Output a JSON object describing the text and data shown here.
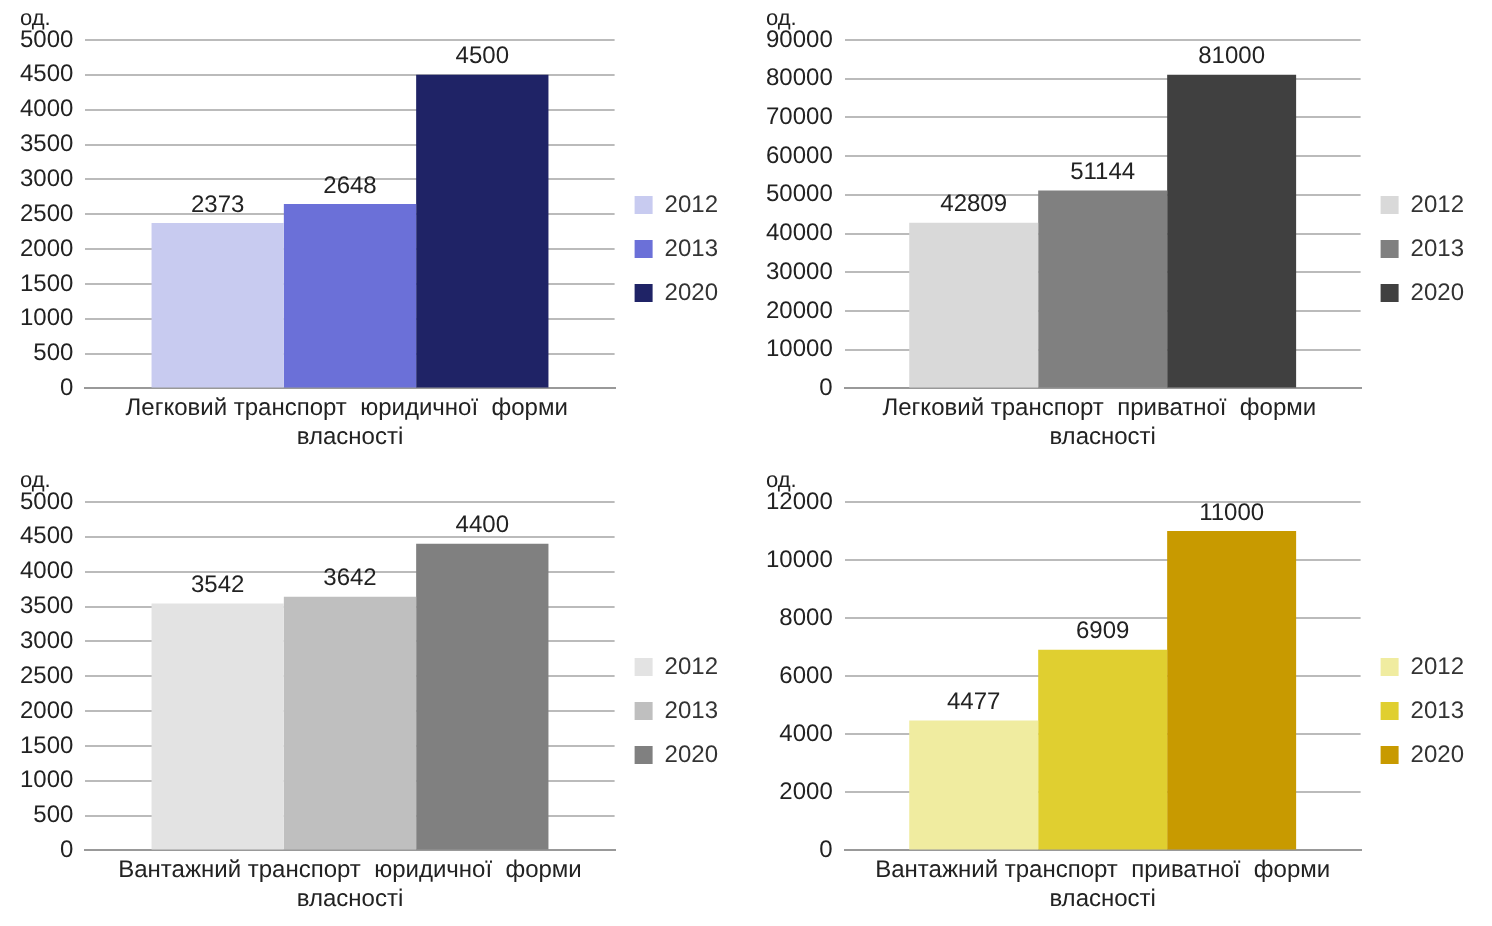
{
  "chart_data": [
    {
      "type": "bar",
      "ylabel": "од.",
      "categories": [
        "Легковий транспорт  юридичної  форми  власності"
      ],
      "series": [
        {
          "name": "2012",
          "color": "#c8cbf0",
          "values": [
            2373
          ]
        },
        {
          "name": "2013",
          "color": "#6b70d8",
          "values": [
            2648
          ]
        },
        {
          "name": "2020",
          "color": "#1f2366",
          "values": [
            4500
          ]
        }
      ],
      "ylim": [
        0,
        5000
      ],
      "yticks": [
        0,
        500,
        1000,
        1500,
        2000,
        2500,
        3000,
        3500,
        4000,
        4500,
        5000
      ],
      "grid": "y",
      "legend": "right",
      "data_labels": true
    },
    {
      "type": "bar",
      "ylabel": "од.",
      "categories": [
        "Легковий транспорт  приватної  форми  власності"
      ],
      "series": [
        {
          "name": "2012",
          "color": "#d9d9d9",
          "values": [
            42809
          ]
        },
        {
          "name": "2013",
          "color": "#808080",
          "values": [
            51144
          ]
        },
        {
          "name": "2020",
          "color": "#404040",
          "values": [
            81000
          ]
        }
      ],
      "ylim": [
        0,
        90000
      ],
      "yticks": [
        0,
        10000,
        20000,
        30000,
        40000,
        50000,
        60000,
        70000,
        80000,
        90000
      ],
      "grid": "y",
      "legend": "right",
      "data_labels": true
    },
    {
      "type": "bar",
      "ylabel": "од.",
      "categories": [
        "Вантажний транспорт  юридичної  форми власності"
      ],
      "series": [
        {
          "name": "2012",
          "color": "#e3e3e3",
          "values": [
            3542
          ]
        },
        {
          "name": "2013",
          "color": "#bfbfbf",
          "values": [
            3642
          ]
        },
        {
          "name": "2020",
          "color": "#808080",
          "values": [
            4400
          ]
        }
      ],
      "ylim": [
        0,
        5000
      ],
      "yticks": [
        0,
        500,
        1000,
        1500,
        2000,
        2500,
        3000,
        3500,
        4000,
        4500,
        5000
      ],
      "grid": "y",
      "legend": "right",
      "data_labels": true
    },
    {
      "type": "bar",
      "ylabel": "од.",
      "categories": [
        "Вантажний транспорт  приватної  форми власності"
      ],
      "series": [
        {
          "name": "2012",
          "color": "#f0eca0",
          "values": [
            4477
          ]
        },
        {
          "name": "2013",
          "color": "#e0cf30",
          "values": [
            6909
          ]
        },
        {
          "name": "2020",
          "color": "#c89a00",
          "values": [
            11000
          ]
        }
      ],
      "ylim": [
        0,
        12000
      ],
      "yticks": [
        0,
        2000,
        4000,
        6000,
        8000,
        10000,
        12000
      ],
      "grid": "y",
      "legend": "right",
      "data_labels": true
    }
  ]
}
